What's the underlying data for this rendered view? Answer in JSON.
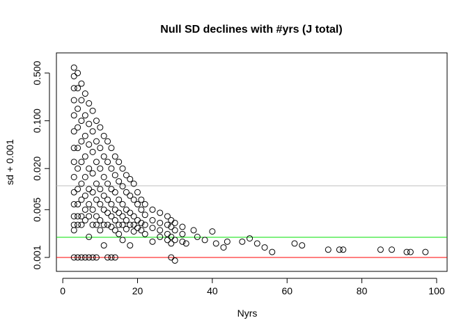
{
  "chart_data": {
    "type": "scatter",
    "title": "Null SD declines with #yrs (J total)",
    "x_label": "Nyrs",
    "y_label": "sd + 0.001",
    "log_y": true,
    "xlim": [
      -1.7,
      102.8
    ],
    "ylim": [
      0.000625,
      0.986
    ],
    "xticks": [
      0,
      20,
      40,
      60,
      80,
      100
    ],
    "yticks": [
      0.001,
      0.005,
      {
        "value": 0.02,
        "label": "0.020"
      },
      {
        "value": 0.1,
        "label": "0.100"
      },
      {
        "value": 0.5,
        "label": "0.500"
      }
    ],
    "color": "#000000",
    "hlines": [
      {
        "value": 0.0112,
        "color": "#bebebe"
      },
      {
        "value": 0.00197,
        "color": "#00e000"
      },
      {
        "value": 0.001,
        "color": "#ff0000"
      }
    ],
    "points": [
      [
        3,
        0.6
      ],
      [
        3,
        0.45
      ],
      [
        3,
        0.3
      ],
      [
        3,
        0.2
      ],
      [
        3,
        0.12
      ],
      [
        3,
        0.07
      ],
      [
        3,
        0.04
      ],
      [
        3,
        0.025
      ],
      [
        3,
        0.015
      ],
      [
        3,
        0.009
      ],
      [
        3,
        0.006
      ],
      [
        3,
        0.004
      ],
      [
        3,
        0.003
      ],
      [
        3,
        0.0025
      ],
      [
        3,
        0.001
      ],
      [
        4,
        0.5
      ],
      [
        4,
        0.3
      ],
      [
        4,
        0.15
      ],
      [
        4,
        0.08
      ],
      [
        4,
        0.04
      ],
      [
        4,
        0.02
      ],
      [
        4,
        0.01
      ],
      [
        4,
        0.006
      ],
      [
        4,
        0.004
      ],
      [
        4,
        0.003
      ],
      [
        4,
        0.001
      ],
      [
        5,
        0.35
      ],
      [
        5,
        0.2
      ],
      [
        5,
        0.1
      ],
      [
        5,
        0.05
      ],
      [
        5,
        0.025
      ],
      [
        5,
        0.012
      ],
      [
        5,
        0.007
      ],
      [
        5,
        0.004
      ],
      [
        5,
        0.003
      ],
      [
        5,
        0.001
      ],
      [
        6,
        0.25
      ],
      [
        6,
        0.12
      ],
      [
        6,
        0.06
      ],
      [
        6,
        0.03
      ],
      [
        6,
        0.015
      ],
      [
        6,
        0.008
      ],
      [
        6,
        0.005
      ],
      [
        6,
        0.0035
      ],
      [
        6,
        0.001
      ],
      [
        7,
        0.18
      ],
      [
        7,
        0.09
      ],
      [
        7,
        0.045
      ],
      [
        7,
        0.02
      ],
      [
        7,
        0.01
      ],
      [
        7,
        0.006
      ],
      [
        7,
        0.004
      ],
      [
        7,
        0.002
      ],
      [
        7,
        0.001
      ],
      [
        8,
        0.14
      ],
      [
        8,
        0.07
      ],
      [
        8,
        0.035
      ],
      [
        8,
        0.017
      ],
      [
        8,
        0.009
      ],
      [
        8,
        0.005
      ],
      [
        8,
        0.003
      ],
      [
        8,
        0.001
      ],
      [
        9,
        0.1
      ],
      [
        9,
        0.05
      ],
      [
        9,
        0.025
      ],
      [
        9,
        0.012
      ],
      [
        9,
        0.007
      ],
      [
        9,
        0.004
      ],
      [
        9,
        0.003
      ],
      [
        9,
        0.001
      ],
      [
        10,
        0.08
      ],
      [
        10,
        0.04
      ],
      [
        10,
        0.02
      ],
      [
        10,
        0.01
      ],
      [
        10,
        0.006
      ],
      [
        10,
        0.0035
      ],
      [
        10,
        0.0025
      ],
      [
        11,
        0.06
      ],
      [
        11,
        0.03
      ],
      [
        11,
        0.015
      ],
      [
        11,
        0.008
      ],
      [
        11,
        0.005
      ],
      [
        11,
        0.003
      ],
      [
        11,
        0.0015
      ],
      [
        12,
        0.05
      ],
      [
        12,
        0.025
      ],
      [
        12,
        0.012
      ],
      [
        12,
        0.007
      ],
      [
        12,
        0.0045
      ],
      [
        12,
        0.003
      ],
      [
        12,
        0.001
      ],
      [
        13,
        0.04
      ],
      [
        13,
        0.02
      ],
      [
        13,
        0.01
      ],
      [
        13,
        0.006
      ],
      [
        13,
        0.004
      ],
      [
        13,
        0.0028
      ],
      [
        13,
        0.001
      ],
      [
        14,
        0.03
      ],
      [
        14,
        0.016
      ],
      [
        14,
        0.009
      ],
      [
        14,
        0.005
      ],
      [
        14,
        0.0035
      ],
      [
        14,
        0.0025
      ],
      [
        14,
        0.001
      ],
      [
        15,
        0.025
      ],
      [
        15,
        0.013
      ],
      [
        15,
        0.007
      ],
      [
        15,
        0.0045
      ],
      [
        15,
        0.003
      ],
      [
        15,
        0.0022
      ],
      [
        16,
        0.02
      ],
      [
        16,
        0.011
      ],
      [
        16,
        0.006
      ],
      [
        16,
        0.004
      ],
      [
        16,
        0.003
      ],
      [
        16,
        0.0018
      ],
      [
        17,
        0.016
      ],
      [
        17,
        0.009
      ],
      [
        17,
        0.005
      ],
      [
        17,
        0.0035
      ],
      [
        17,
        0.0026
      ],
      [
        18,
        0.014
      ],
      [
        18,
        0.008
      ],
      [
        18,
        0.0045
      ],
      [
        18,
        0.003
      ],
      [
        18,
        0.0015
      ],
      [
        19,
        0.012
      ],
      [
        19,
        0.007
      ],
      [
        19,
        0.004
      ],
      [
        19,
        0.003
      ],
      [
        19,
        0.0024
      ],
      [
        20,
        0.009
      ],
      [
        20,
        0.006
      ],
      [
        20,
        0.0035
      ],
      [
        20,
        0.0027
      ],
      [
        21,
        0.007
      ],
      [
        21,
        0.005
      ],
      [
        21,
        0.0032
      ],
      [
        21,
        0.0025
      ],
      [
        22,
        0.006
      ],
      [
        22,
        0.0042
      ],
      [
        22,
        0.003
      ],
      [
        22,
        0.0022
      ],
      [
        24,
        0.005
      ],
      [
        24,
        0.0035
      ],
      [
        24,
        0.0027
      ],
      [
        24,
        0.0017
      ],
      [
        26,
        0.0045
      ],
      [
        26,
        0.0032
      ],
      [
        26,
        0.0025
      ],
      [
        26,
        0.002
      ],
      [
        28,
        0.004
      ],
      [
        28,
        0.003
      ],
      [
        28,
        0.0022
      ],
      [
        28,
        0.0018
      ],
      [
        29,
        0.0035
      ],
      [
        29,
        0.0028
      ],
      [
        29,
        0.002
      ],
      [
        29,
        0.0016
      ],
      [
        29,
        0.001
      ],
      [
        30,
        0.0032
      ],
      [
        30,
        0.0025
      ],
      [
        30,
        0.0018
      ],
      [
        30,
        0.0009
      ],
      [
        32,
        0.0028
      ],
      [
        32,
        0.0022
      ],
      [
        32,
        0.0017
      ],
      [
        33,
        0.0016
      ],
      [
        35,
        0.0025
      ],
      [
        36,
        0.002
      ],
      [
        38,
        0.0018
      ],
      [
        40,
        0.0024
      ],
      [
        41,
        0.0016
      ],
      [
        43,
        0.0014
      ],
      [
        44,
        0.0017
      ],
      [
        48,
        0.0017
      ],
      [
        50,
        0.0019
      ],
      [
        52,
        0.0016
      ],
      [
        54,
        0.0014
      ],
      [
        56,
        0.0012
      ],
      [
        62,
        0.0016
      ],
      [
        64,
        0.0015
      ],
      [
        71,
        0.0013
      ],
      [
        74,
        0.0013
      ],
      [
        75,
        0.0013
      ],
      [
        85,
        0.0013
      ],
      [
        88,
        0.0013
      ],
      [
        92,
        0.0012
      ],
      [
        93,
        0.0012
      ],
      [
        97,
        0.0012
      ]
    ]
  }
}
